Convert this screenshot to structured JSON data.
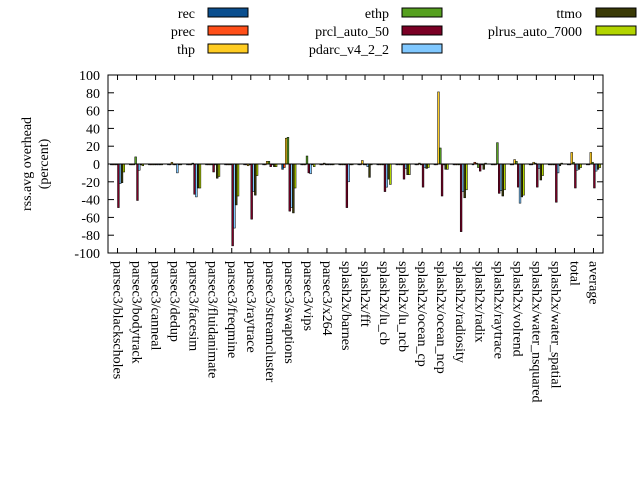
{
  "chart_data": {
    "type": "bar",
    "ylabel": [
      "rss.avg overhead",
      "(percent)"
    ],
    "ylim": [
      -100,
      100
    ],
    "yticks": [
      -100,
      -80,
      -60,
      -40,
      -20,
      0,
      20,
      40,
      60,
      80,
      100
    ],
    "grid": false,
    "legend_position": "top",
    "categories": [
      "parsec3/blackscholes",
      "parsec3/bodytrack",
      "parsec3/canneal",
      "parsec3/dedup",
      "parsec3/facesim",
      "parsec3/fluidanimate",
      "parsec3/freqmine",
      "parsec3/raytrace",
      "parsec3/streamcluster",
      "parsec3/swaptions",
      "parsec3/vips",
      "parsec3/x264",
      "splash2x/barnes",
      "splash2x/fft",
      "splash2x/lu_cb",
      "splash2x/lu_ncb",
      "splash2x/ocean_cp",
      "splash2x/ocean_ncp",
      "splash2x/radiosity",
      "splash2x/radix",
      "splash2x/raytrace",
      "splash2x/volrend",
      "splash2x/water_nsquared",
      "splash2x/water_spatial",
      "total",
      "average"
    ],
    "series": [
      {
        "name": "rec",
        "color": "#0b4f8f",
        "values": [
          -1,
          -1,
          -1,
          -1,
          -1,
          -1,
          -1,
          -1,
          -1,
          -6,
          -1,
          -1,
          -1,
          -1,
          -1,
          -1,
          -1,
          -1,
          -1,
          -1,
          -1,
          -1,
          -1,
          -1,
          -1,
          -1
        ]
      },
      {
        "name": "prec",
        "color": "#ff4f19",
        "values": [
          -1,
          -1,
          -1,
          -1,
          -1,
          -1,
          -1,
          -1,
          -1,
          -4,
          -1,
          -1,
          -1,
          -1,
          -1,
          -1,
          -1,
          -1,
          -1,
          2,
          -1,
          -1,
          -1,
          -1,
          -1,
          -1
        ]
      },
      {
        "name": "thp",
        "color": "#ffcc22",
        "values": [
          -1,
          -1,
          -1,
          2,
          -1,
          -1,
          -1,
          -2,
          3,
          29,
          -1,
          1,
          -1,
          4,
          -1,
          -1,
          1,
          81,
          -1,
          1,
          -1,
          5,
          2,
          -1,
          13,
          13
        ]
      },
      {
        "name": "ethp",
        "color": "#56a020",
        "values": [
          -1,
          8,
          -1,
          -1,
          1,
          -1,
          -1,
          -1,
          3,
          30,
          9,
          -1,
          -1,
          -1,
          -1,
          -1,
          -1,
          18,
          -1,
          -4,
          24,
          3,
          1,
          -1,
          2,
          2
        ]
      },
      {
        "name": "prcl_auto_50",
        "color": "#7a0025",
        "values": [
          -49,
          -41,
          -1,
          -1,
          -34,
          -9,
          -92,
          -62,
          -3,
          -53,
          -10,
          -1,
          -49,
          -1,
          -31,
          -17,
          -26,
          -36,
          -76,
          -8,
          -33,
          -26,
          -26,
          -43,
          -27,
          -27
        ]
      },
      {
        "name": "pdarc_v4_2_2",
        "color": "#80c8ff",
        "values": [
          -22,
          -7,
          -1,
          -10,
          -37,
          -1,
          -72,
          -31,
          -1,
          -49,
          -11,
          -1,
          -20,
          -3,
          -26,
          -5,
          -4,
          -1,
          -31,
          -1,
          -30,
          -44,
          -5,
          -10,
          -7,
          -8
        ]
      },
      {
        "name": "ttmo",
        "color": "#3a3a06",
        "values": [
          -21,
          -1,
          -1,
          -1,
          -27,
          -16,
          -46,
          -35,
          -3,
          -55,
          -1,
          -1,
          -1,
          -15,
          -17,
          -12,
          -5,
          -6,
          -38,
          -6,
          -36,
          -37,
          -18,
          -2,
          -6,
          -6
        ]
      },
      {
        "name": "plrus_auto_7000",
        "color": "#b2d400",
        "values": [
          -9,
          -2,
          -1,
          -1,
          -27,
          -14,
          -36,
          -13,
          -3,
          -27,
          -3,
          -1,
          -1,
          -1,
          -23,
          -12,
          -4,
          -6,
          -29,
          1,
          -29,
          -35,
          -13,
          1,
          -4,
          -4
        ]
      }
    ]
  }
}
